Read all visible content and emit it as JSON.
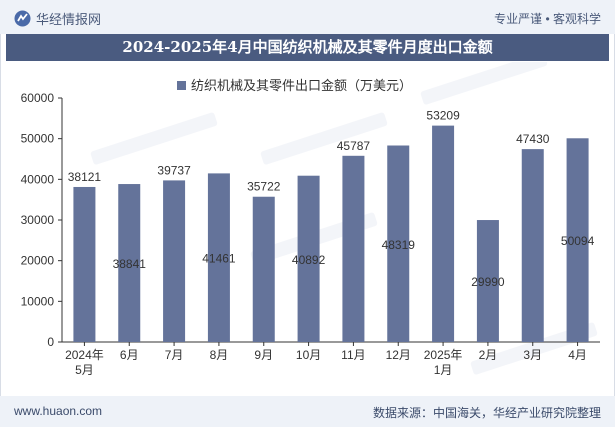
{
  "header": {
    "brand": "华经情报网",
    "tagline": "专业严谨 • 客观科学"
  },
  "footer": {
    "site": "www.huaon.com",
    "source": "数据来源：中国海关，华经产业研究院整理"
  },
  "colors": {
    "bar": "#64739a",
    "title_bg": "#4a5b80",
    "axis": "#333333"
  },
  "chart_data": {
    "type": "bar",
    "title": "2024-2025年4月中国纺织机械及其零件月度出口金额",
    "legend": "纺织机械及其零件出口金额（万美元）",
    "legend_position": "top-center",
    "categories": [
      [
        "2024年",
        "5月"
      ],
      [
        "6月"
      ],
      [
        "7月"
      ],
      [
        "8月"
      ],
      [
        "9月"
      ],
      [
        "10月"
      ],
      [
        "11月"
      ],
      [
        "12月"
      ],
      [
        "2025年",
        "1月"
      ],
      [
        "2月"
      ],
      [
        "3月"
      ],
      [
        "4月"
      ]
    ],
    "values": [
      38121,
      38841,
      39737,
      41461,
      35722,
      40892,
      45787,
      48319,
      53209,
      29990,
      47430,
      50094
    ],
    "label_positions": [
      "outside",
      "inside",
      "outside",
      "inside",
      "outside",
      "inside",
      "outside",
      "inside",
      "outside",
      "inside",
      "outside",
      "inside"
    ],
    "ylim": [
      0,
      60000
    ],
    "yticks": [
      0,
      10000,
      20000,
      30000,
      40000,
      50000,
      60000
    ],
    "xlabel": "",
    "ylabel": "",
    "grid": false
  }
}
